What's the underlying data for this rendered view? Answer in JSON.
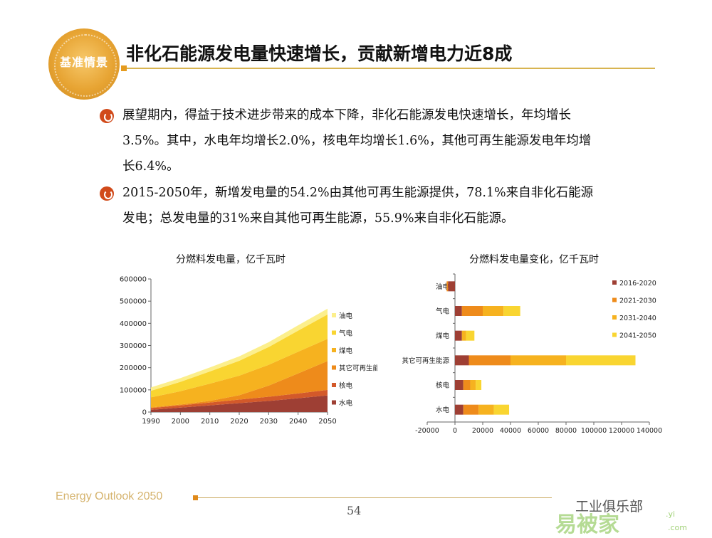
{
  "badge": {
    "label": "基准情景"
  },
  "header": {
    "title": "非化石能源发电量快速增长，贡献新增电力近8成"
  },
  "bullets": [
    {
      "line1": "展望期内，得益于技术进步带来的成本下降，非化石能源发电快速增长，年均增长",
      "line2": "3.5%。其中，水电年均增长2.0%，核电年均增长1.6%，其他可再生能源发电年均增",
      "line3": "长6.4%。"
    },
    {
      "line1": "2015-2050年，新增发电量的54.2%由其他可再生能源提供，78.1%来自非化石能源",
      "line2": "发电；总发电量的31%来自其他可再生能源，55.9%来自非化石能源。"
    }
  ],
  "footer": {
    "left": "Energy Outlook 2050",
    "page": "54"
  },
  "watermark": {
    "line1": "工业俱乐部",
    "line2": "易被家",
    "line3": ".yi",
    ".com": ".com"
  },
  "colors": {
    "hydro": "#9e3f34",
    "nuclear": "#d3592a",
    "other_renewables": "#ee8b1b",
    "coal": "#f6b21f",
    "gas": "#f9d531",
    "oil": "#fcef8c"
  },
  "chart_data": [
    {
      "type": "area",
      "stacked": true,
      "title": "分燃料发电量，亿千瓦时",
      "x": [
        1990,
        2000,
        2010,
        2020,
        2030,
        2040,
        2050
      ],
      "xlim": [
        1990,
        2050
      ],
      "ylim": [
        0,
        600000
      ],
      "yticks": [
        0,
        100000,
        200000,
        300000,
        400000,
        500000,
        600000
      ],
      "legend_position": "right",
      "series": [
        {
          "name": "水电",
          "color": "#9e3f34",
          "values": [
            10000,
            20000,
            30000,
            40000,
            50000,
            62000,
            75000
          ]
        },
        {
          "name": "核电",
          "color": "#d3592a",
          "values": [
            8000,
            10000,
            13000,
            16000,
            19000,
            22000,
            25000
          ]
        },
        {
          "name": "其它可再生能源",
          "color": "#ee8b1b",
          "values": [
            3000,
            4000,
            7000,
            20000,
            50000,
            90000,
            130000
          ]
        },
        {
          "name": "煤电",
          "color": "#f6b21f",
          "values": [
            45000,
            60000,
            78000,
            88000,
            94000,
            98000,
            100000
          ]
        },
        {
          "name": "气电",
          "color": "#f9d531",
          "values": [
            30000,
            42000,
            55000,
            67000,
            80000,
            95000,
            110000
          ]
        },
        {
          "name": "油电",
          "color": "#fcef8c",
          "values": [
            15000,
            17000,
            18000,
            20000,
            22000,
            24000,
            26000
          ]
        }
      ]
    },
    {
      "type": "bar",
      "orientation": "horizontal",
      "stacked": true,
      "title": "分燃料发电量变化，亿千瓦时",
      "categories": [
        "油电",
        "气电",
        "煤电",
        "其它可再生能源",
        "核电",
        "水电"
      ],
      "xlim": [
        -20000,
        140000
      ],
      "xticks": [
        -20000,
        0,
        20000,
        40000,
        60000,
        80000,
        100000,
        120000,
        140000
      ],
      "legend_position": "right",
      "series": [
        {
          "name": "2016-2020",
          "color": "#9e3f34",
          "values": [
            -5000,
            5000,
            5000,
            10000,
            6000,
            6000
          ]
        },
        {
          "name": "2021-2030",
          "color": "#ee8b1b",
          "values": [
            -1000,
            15000,
            0,
            30000,
            5000,
            11000
          ]
        },
        {
          "name": "2031-2040",
          "color": "#f6b21f",
          "values": [
            0,
            15000,
            3000,
            40000,
            4000,
            11000
          ]
        },
        {
          "name": "2041-2050",
          "color": "#f9d531",
          "values": [
            0,
            12000,
            6000,
            50000,
            4000,
            11000
          ]
        }
      ]
    }
  ]
}
